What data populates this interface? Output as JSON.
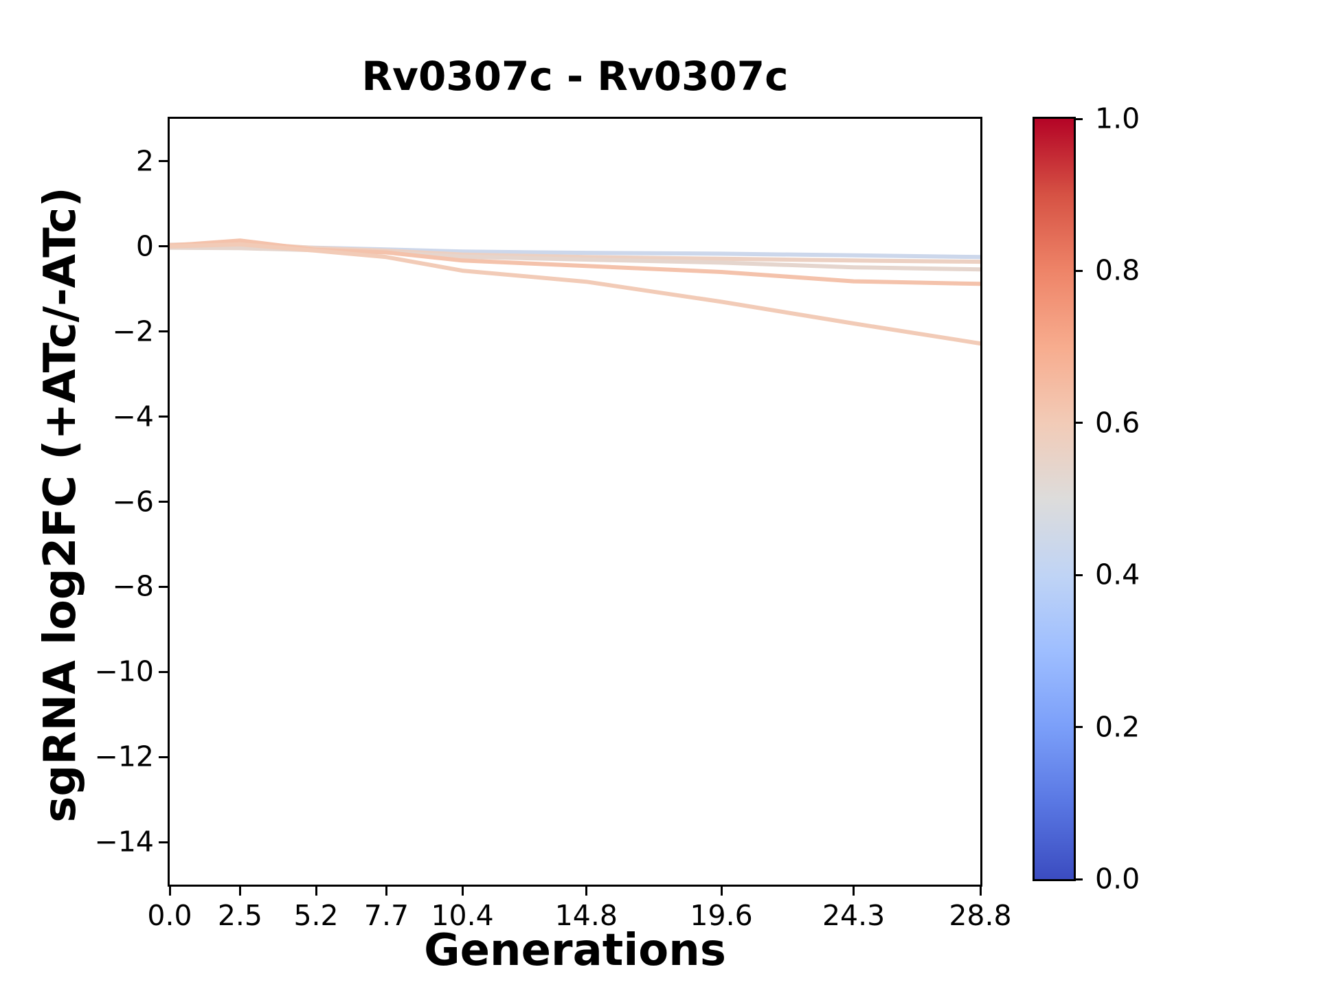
{
  "title": "Rv0307c - Rv0307c",
  "axes": {
    "xlabel": "Generations",
    "ylabel": "sgRNA log2FC (+ATc/-ATc)",
    "x_tick_labels": [
      "0.0",
      "2.5",
      "5.2",
      "7.7",
      "10.4",
      "14.8",
      "19.6",
      "24.3",
      "28.8"
    ],
    "y_tick_labels": [
      "2",
      "0",
      "−2",
      "−4",
      "−6",
      "−8",
      "−10",
      "−12",
      "−14"
    ],
    "y_tick_values": [
      2,
      0,
      -2,
      -4,
      -6,
      -8,
      -10,
      -12,
      -14
    ]
  },
  "colorbar": {
    "tick_labels": [
      "0.0",
      "0.2",
      "0.4",
      "0.6",
      "0.8",
      "1.0"
    ],
    "tick_values": [
      0.0,
      0.2,
      0.4,
      0.6,
      0.8,
      1.0
    ],
    "colormap": "coolwarm",
    "gradient_stops": [
      [
        0.0,
        "#3b4cc0"
      ],
      [
        0.1,
        "#5977e3"
      ],
      [
        0.2,
        "#7b9ff9"
      ],
      [
        0.3,
        "#9ebeff"
      ],
      [
        0.4,
        "#c0d4f5"
      ],
      [
        0.5,
        "#dddcdb"
      ],
      [
        0.6,
        "#f2cbb7"
      ],
      [
        0.7,
        "#f7ac8e"
      ],
      [
        0.8,
        "#ee8468"
      ],
      [
        0.9,
        "#d65244"
      ],
      [
        1.0,
        "#b40426"
      ]
    ]
  },
  "chart_data": {
    "type": "line",
    "title": "Rv0307c - Rv0307c",
    "xlabel": "Generations",
    "ylabel": "sgRNA log2FC (+ATc/-ATc)",
    "x": [
      0.0,
      2.5,
      5.2,
      7.7,
      10.4,
      14.8,
      19.6,
      24.3,
      28.8
    ],
    "xlim": [
      0,
      28.8
    ],
    "ylim": [
      -15,
      3
    ],
    "grid": false,
    "legend": "none",
    "colorbar_range": [
      0.0,
      1.0
    ],
    "line_width": 6,
    "series": [
      {
        "name": "line-1",
        "colormap_value": 0.44,
        "color": "#ccd7eb",
        "values": [
          -0.02,
          0.02,
          -0.03,
          -0.07,
          -0.12,
          -0.15,
          -0.17,
          -0.21,
          -0.25
        ]
      },
      {
        "name": "line-2",
        "colormap_value": 0.57,
        "color": "#ecd0c2",
        "values": [
          0.04,
          0.08,
          -0.04,
          -0.1,
          -0.19,
          -0.25,
          -0.29,
          -0.33,
          -0.36
        ]
      },
      {
        "name": "line-3",
        "colormap_value": 0.54,
        "color": "#e5d5cd",
        "values": [
          -0.03,
          -0.04,
          -0.09,
          -0.14,
          -0.24,
          -0.31,
          -0.38,
          -0.49,
          -0.54
        ]
      },
      {
        "name": "line-4",
        "colormap_value": 0.63,
        "color": "#f4c2ab",
        "values": [
          0.02,
          0.14,
          -0.08,
          -0.14,
          -0.33,
          -0.46,
          -0.6,
          -0.82,
          -0.88
        ]
      },
      {
        "name": "line-5",
        "colormap_value": 0.6,
        "color": "#f2cbb7",
        "values": [
          0.0,
          0.05,
          -0.1,
          -0.25,
          -0.57,
          -0.83,
          -1.3,
          -1.81,
          -2.28
        ]
      }
    ]
  }
}
